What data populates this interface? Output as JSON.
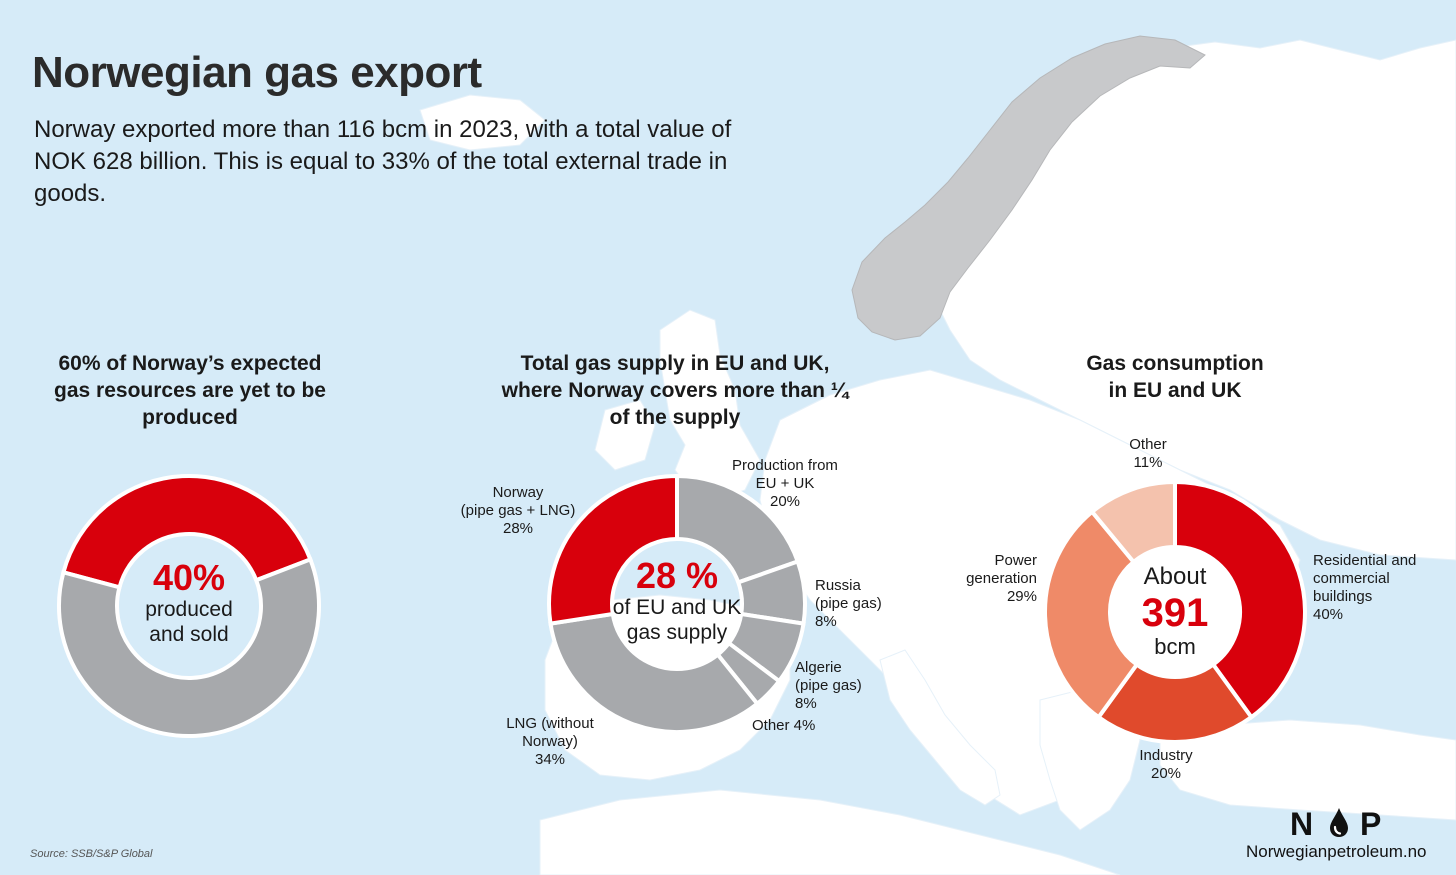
{
  "title": "Norwegian gas export",
  "subtitle": "Norway exported more than 116 bcm in 2023, with a total value of NOK 628 billion. This is equal to 33% of the total external trade in goods.",
  "source": "Source: SSB/S&P Global",
  "logo": {
    "text": "NOP",
    "left": "N",
    "right": "P",
    "website": "Norwegianpetroleum.no"
  },
  "colors": {
    "red": "#d8000c",
    "gray": "#a7a9ac",
    "industry": "#e04a2c",
    "power": "#ef8a68",
    "other": "#f4c2ad",
    "sea": "#d6ebf8",
    "land": "#ffffff",
    "norway": "#c8c9cb"
  },
  "chart_data": [
    {
      "type": "pie",
      "title": "60% of Norway’s expected gas resources are yet to be produced",
      "center": {
        "value": "40%",
        "line1": "produced",
        "line2": "and sold"
      },
      "slices": [
        {
          "label": "",
          "value": 40,
          "color": "#d8000c"
        },
        {
          "label": "",
          "value": 60,
          "color": "#a7a9ac"
        }
      ]
    },
    {
      "type": "pie",
      "title": "Total gas supply in EU and UK, where Norway covers more than ¼ of the supply",
      "center": {
        "value": "28 %",
        "line1": "of EU and UK",
        "line2": "gas supply"
      },
      "slices": [
        {
          "label": [
            "Production from",
            "EU + UK",
            "20%"
          ],
          "value": 20,
          "color": "#a7a9ac"
        },
        {
          "label": [
            "Russia",
            "(pipe gas)",
            "8%"
          ],
          "value": 8,
          "color": "#a7a9ac"
        },
        {
          "label": [
            "Algerie",
            "(pipe gas)",
            "8%"
          ],
          "value": 8,
          "color": "#a7a9ac"
        },
        {
          "label": [
            "Other 4%"
          ],
          "value": 4,
          "color": "#a7a9ac"
        },
        {
          "label": [
            "LNG (without",
            "Norway)",
            "34%"
          ],
          "value": 34,
          "color": "#a7a9ac"
        },
        {
          "label": [
            "Norway",
            "(pipe gas + LNG)",
            "28%"
          ],
          "value": 28,
          "color": "#d8000c"
        }
      ]
    },
    {
      "type": "pie",
      "title": "Gas consumption in EU and UK",
      "center": {
        "line1": "About",
        "value": "391",
        "line2": "bcm"
      },
      "slices": [
        {
          "label": [
            "Residential and",
            "commercial",
            "buildings",
            "40%"
          ],
          "value": 40,
          "color": "#d8000c"
        },
        {
          "label": [
            "Industry",
            "20%"
          ],
          "value": 20,
          "color": "#e04a2c"
        },
        {
          "label": [
            "Power",
            "generation",
            "29%"
          ],
          "value": 29,
          "color": "#ef8a68"
        },
        {
          "label": [
            "Other",
            "11%"
          ],
          "value": 11,
          "color": "#f4c2ad"
        }
      ]
    }
  ]
}
